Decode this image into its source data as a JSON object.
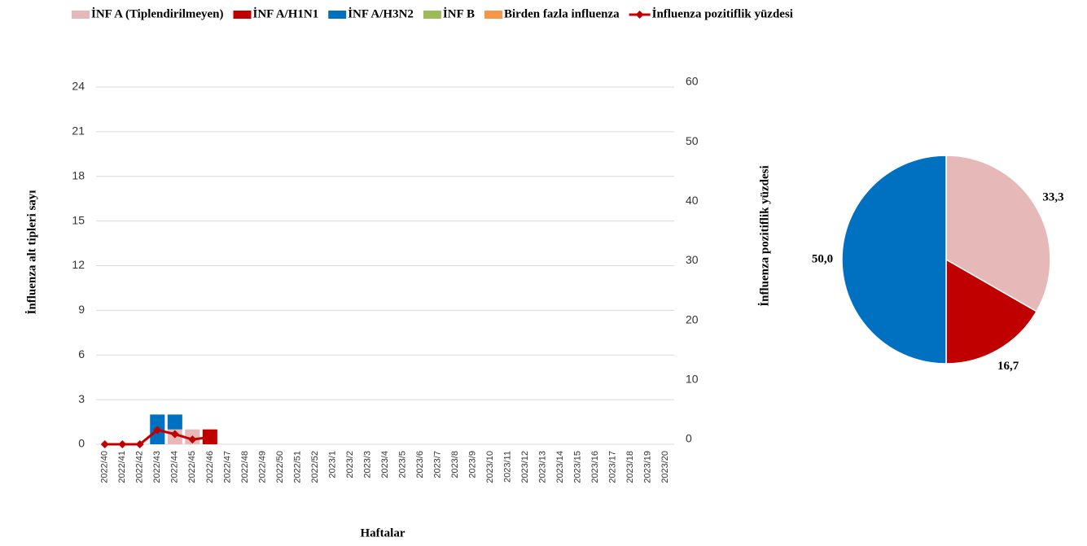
{
  "chart_data": [
    {
      "type": "bar-line",
      "x_label": "Haftalar",
      "y_label": "İnfluenza alt tipleri sayı",
      "y2_label": "İnfluenza pozitiflik yüzdesi",
      "categories": [
        "2022/40",
        "2022/41",
        "2022/42",
        "2022/43",
        "2022/44",
        "2022/45",
        "2022/46",
        "2022/47",
        "2022/48",
        "2022/49",
        "2022/50",
        "2022/51",
        "2022/52",
        "2023/1",
        "2023/2",
        "2023/3",
        "2023/4",
        "2023/5",
        "2023/6",
        "2023/7",
        "2023/8",
        "2023/9",
        "2023/10",
        "2023/11",
        "2023/12",
        "2023/13",
        "2023/14",
        "2023/15",
        "2023/16",
        "2023/17",
        "2023/18",
        "2023/19",
        "2023/20"
      ],
      "series": [
        {
          "name": "İNF A (Tiplendirilmeyen)",
          "color": "#e6b8b7",
          "values": [
            0,
            0,
            0,
            0,
            1,
            1,
            0,
            0,
            0,
            0,
            0,
            0,
            0,
            0,
            0,
            0,
            0,
            0,
            0,
            0,
            0,
            0,
            0,
            0,
            0,
            0,
            0,
            0,
            0,
            0,
            0,
            0,
            0
          ]
        },
        {
          "name": "İNF A/H1N1",
          "color": "#c00000",
          "values": [
            0,
            0,
            0,
            0,
            0,
            0,
            1,
            0,
            0,
            0,
            0,
            0,
            0,
            0,
            0,
            0,
            0,
            0,
            0,
            0,
            0,
            0,
            0,
            0,
            0,
            0,
            0,
            0,
            0,
            0,
            0,
            0,
            0
          ]
        },
        {
          "name": "İNF A/H3N2",
          "color": "#0070c0",
          "values": [
            0,
            0,
            0,
            2,
            1,
            0,
            0,
            0,
            0,
            0,
            0,
            0,
            0,
            0,
            0,
            0,
            0,
            0,
            0,
            0,
            0,
            0,
            0,
            0,
            0,
            0,
            0,
            0,
            0,
            0,
            0,
            0,
            0
          ]
        },
        {
          "name": "İNF B",
          "color": "#9bbb59",
          "values": [
            0,
            0,
            0,
            0,
            0,
            0,
            0,
            0,
            0,
            0,
            0,
            0,
            0,
            0,
            0,
            0,
            0,
            0,
            0,
            0,
            0,
            0,
            0,
            0,
            0,
            0,
            0,
            0,
            0,
            0,
            0,
            0,
            0
          ]
        },
        {
          "name": "Birden fazla influenza",
          "color": "#f79646",
          "values": [
            0,
            0,
            0,
            0,
            0,
            0,
            0,
            0,
            0,
            0,
            0,
            0,
            0,
            0,
            0,
            0,
            0,
            0,
            0,
            0,
            0,
            0,
            0,
            0,
            0,
            0,
            0,
            0,
            0,
            0,
            0,
            0,
            0
          ]
        },
        {
          "name": "İnfluenza pozitiflik yüzdesi",
          "color": "#c00000",
          "axis": "y2",
          "values": [
            0,
            0,
            0,
            2.4,
            1.7,
            0.8,
            1.2,
            null,
            null,
            null,
            null,
            null,
            null,
            null,
            null,
            null,
            null,
            null,
            null,
            null,
            null,
            null,
            null,
            null,
            null,
            null,
            null,
            null,
            null,
            null,
            null,
            null,
            null
          ]
        }
      ],
      "ylim": [
        0,
        24
      ],
      "yticks": [
        0,
        3,
        6,
        9,
        12,
        15,
        18,
        21,
        24
      ],
      "y2lim": [
        0,
        60
      ],
      "y2ticks": [
        0,
        10,
        20,
        30,
        40,
        50,
        60
      ],
      "grid": true,
      "legend": "top"
    },
    {
      "type": "pie",
      "values": [
        33.3,
        16.7,
        50.0
      ],
      "value_labels": [
        "33,3",
        "16,7",
        "50,0"
      ],
      "colors": [
        "#e6b8b7",
        "#c00000",
        "#0070c0"
      ]
    }
  ]
}
